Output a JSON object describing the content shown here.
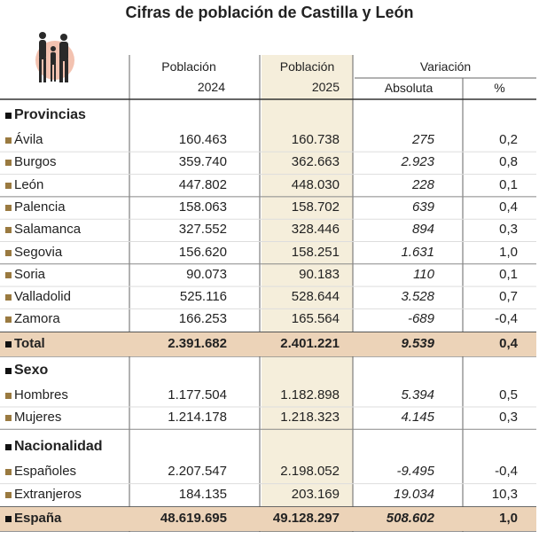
{
  "title": "Cifras de población de Castilla y León",
  "columns": {
    "pop2024": {
      "label": "Población",
      "year": "2024"
    },
    "pop2025": {
      "label": "Población",
      "year": "2025"
    },
    "variacion": {
      "label": "Variación",
      "absoluta": "Absoluta",
      "pct": "%"
    }
  },
  "sections": [
    {
      "name": "Provincias",
      "rows": [
        [
          "Ávila",
          "160.463",
          "160.738",
          "275",
          "0,2"
        ],
        [
          "Burgos",
          "359.740",
          "362.663",
          "2.923",
          "0,8"
        ],
        [
          "León",
          "447.802",
          "448.030",
          "228",
          "0,1"
        ],
        [
          "Palencia",
          "158.063",
          "158.702",
          "639",
          "0,4"
        ],
        [
          "Salamanca",
          "327.552",
          "328.446",
          "894",
          "0,3"
        ],
        [
          "Segovia",
          "156.620",
          "158.251",
          "1.631",
          "1,0"
        ],
        [
          "Soria",
          "90.073",
          "90.183",
          "110",
          "0,1"
        ],
        [
          "Valladolid",
          "525.116",
          "528.644",
          "3.528",
          "0,7"
        ],
        [
          "Zamora",
          "166.253",
          "165.564",
          "-689",
          "-0,4"
        ]
      ],
      "total": [
        "Total",
        "2.391.682",
        "2.401.221",
        "9.539",
        "0,4"
      ]
    },
    {
      "name": "Sexo",
      "rows": [
        [
          "Hombres",
          "1.177.504",
          "1.182.898",
          "5.394",
          "0,5"
        ],
        [
          "Mujeres",
          "1.214.178",
          "1.218.323",
          "4.145",
          "0,3"
        ]
      ]
    },
    {
      "name": "Nacionalidad",
      "rows": [
        [
          "Españoles",
          "2.207.547",
          "2.198.052",
          "-9.495",
          "-0,4"
        ],
        [
          "Extranjeros",
          "184.135",
          "203.169",
          "19.034",
          "10,3"
        ]
      ],
      "total": [
        "España",
        "48.619.695",
        "49.128.297",
        "508.602",
        "1,0"
      ]
    }
  ]
}
